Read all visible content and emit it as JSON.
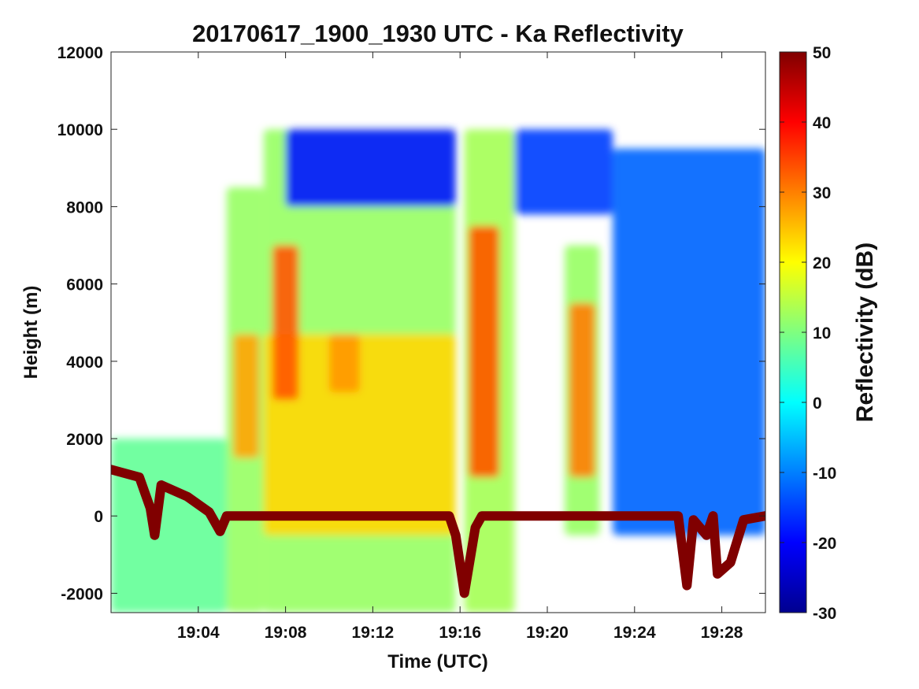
{
  "chart_data": {
    "type": "heatmap",
    "title": "20170617_1900_1930 UTC - Ka Reflectivity",
    "xlabel": "Time (UTC)",
    "ylabel": "Height (m)",
    "xlim_minutes_utc": [
      1140,
      1170
    ],
    "ylim": [
      -2500,
      12000
    ],
    "x_ticks": [
      {
        "value": 1144,
        "label": "19:04"
      },
      {
        "value": 1148,
        "label": "19:08"
      },
      {
        "value": 1152,
        "label": "19:12"
      },
      {
        "value": 1156,
        "label": "19:16"
      },
      {
        "value": 1160,
        "label": "19:20"
      },
      {
        "value": 1164,
        "label": "19:24"
      },
      {
        "value": 1168,
        "label": "19:28"
      }
    ],
    "y_ticks": [
      {
        "value": 12000,
        "label": "12000"
      },
      {
        "value": 10000,
        "label": "10000"
      },
      {
        "value": 8000,
        "label": "8000"
      },
      {
        "value": 6000,
        "label": "6000"
      },
      {
        "value": 4000,
        "label": "4000"
      },
      {
        "value": 2000,
        "label": "2000"
      },
      {
        "value": 0,
        "label": "0"
      },
      {
        "value": -2000,
        "label": "-2000"
      }
    ],
    "colorbar": {
      "label": "Reflectivity (dB)",
      "range": [
        -30,
        50
      ],
      "ticks": [
        {
          "value": 50,
          "label": "50"
        },
        {
          "value": 40,
          "label": "40"
        },
        {
          "value": 30,
          "label": "30"
        },
        {
          "value": 20,
          "label": "20"
        },
        {
          "value": 10,
          "label": "10"
        },
        {
          "value": 0,
          "label": "0"
        },
        {
          "value": -10,
          "label": "-10"
        },
        {
          "value": -20,
          "label": "-20"
        },
        {
          "value": -30,
          "label": "-30"
        }
      ],
      "colormap": "jet"
    },
    "grid": false,
    "echo_regions": [
      {
        "name": "low-level-echo",
        "x": [
          1140.0,
          1145.3
        ],
        "y": [
          -2500,
          2000
        ],
        "dbz": 8
      },
      {
        "name": "cell-1-column",
        "x": [
          1145.3,
          1147.0
        ],
        "y": [
          -2500,
          8500
        ],
        "dbz": 12
      },
      {
        "name": "cell-1-core",
        "x": [
          1145.6,
          1146.8
        ],
        "y": [
          1500,
          4700
        ],
        "dbz": 27
      },
      {
        "name": "cell-2-column",
        "x": [
          1147.0,
          1155.8
        ],
        "y": [
          -2500,
          10000
        ],
        "dbz": 12
      },
      {
        "name": "cell-2-upper-edge",
        "x": [
          1148.0,
          1155.8
        ],
        "y": [
          8000,
          10000
        ],
        "dbz": -18
      },
      {
        "name": "cell-2-bright-band",
        "x": [
          1147.0,
          1155.8
        ],
        "y": [
          -500,
          4700
        ],
        "dbz": 23
      },
      {
        "name": "cell-2-core-a",
        "x": [
          1147.4,
          1148.6
        ],
        "y": [
          3000,
          7000
        ],
        "dbz": 33
      },
      {
        "name": "cell-2-core-b",
        "x": [
          1150.0,
          1151.4
        ],
        "y": [
          3200,
          4700
        ],
        "dbz": 28
      },
      {
        "name": "cell-3-column",
        "x": [
          1156.2,
          1158.5
        ],
        "y": [
          -2500,
          10000
        ],
        "dbz": 13
      },
      {
        "name": "cell-3-core",
        "x": [
          1156.4,
          1157.8
        ],
        "y": [
          1000,
          7500
        ],
        "dbz": 33
      },
      {
        "name": "anvil-upper",
        "x": [
          1158.5,
          1163.0
        ],
        "y": [
          7800,
          10000
        ],
        "dbz": -15
      },
      {
        "name": "cell-4-column",
        "x": [
          1160.8,
          1162.4
        ],
        "y": [
          -500,
          7000
        ],
        "dbz": 12
      },
      {
        "name": "cell-4-core",
        "x": [
          1161.0,
          1162.2
        ],
        "y": [
          1000,
          5500
        ],
        "dbz": 30
      },
      {
        "name": "clear-air-echoes",
        "x": [
          1163.0,
          1170.0
        ],
        "y": [
          -500,
          9500
        ],
        "dbz": -12
      }
    ],
    "surface_echo": {
      "dbz": 50,
      "points": [
        [
          1140.0,
          1200
        ],
        [
          1141.3,
          1000
        ],
        [
          1141.8,
          200
        ],
        [
          1142.0,
          -500
        ],
        [
          1142.3,
          800
        ],
        [
          1143.5,
          500
        ],
        [
          1144.5,
          100
        ],
        [
          1145.0,
          -400
        ],
        [
          1145.3,
          0
        ],
        [
          1146.8,
          0
        ],
        [
          1147.6,
          0
        ],
        [
          1149.0,
          0
        ],
        [
          1155.5,
          0
        ],
        [
          1155.8,
          -500
        ],
        [
          1156.2,
          -2000
        ],
        [
          1156.7,
          -300
        ],
        [
          1157.0,
          0
        ],
        [
          1160.5,
          0
        ],
        [
          1161.0,
          0
        ],
        [
          1162.6,
          0
        ],
        [
          1166.0,
          0
        ],
        [
          1166.4,
          -1800
        ],
        [
          1166.7,
          -100
        ],
        [
          1167.3,
          -500
        ],
        [
          1167.6,
          0
        ],
        [
          1167.8,
          -1500
        ],
        [
          1168.4,
          -1200
        ],
        [
          1169.0,
          -100
        ],
        [
          1170.0,
          0
        ]
      ]
    }
  }
}
